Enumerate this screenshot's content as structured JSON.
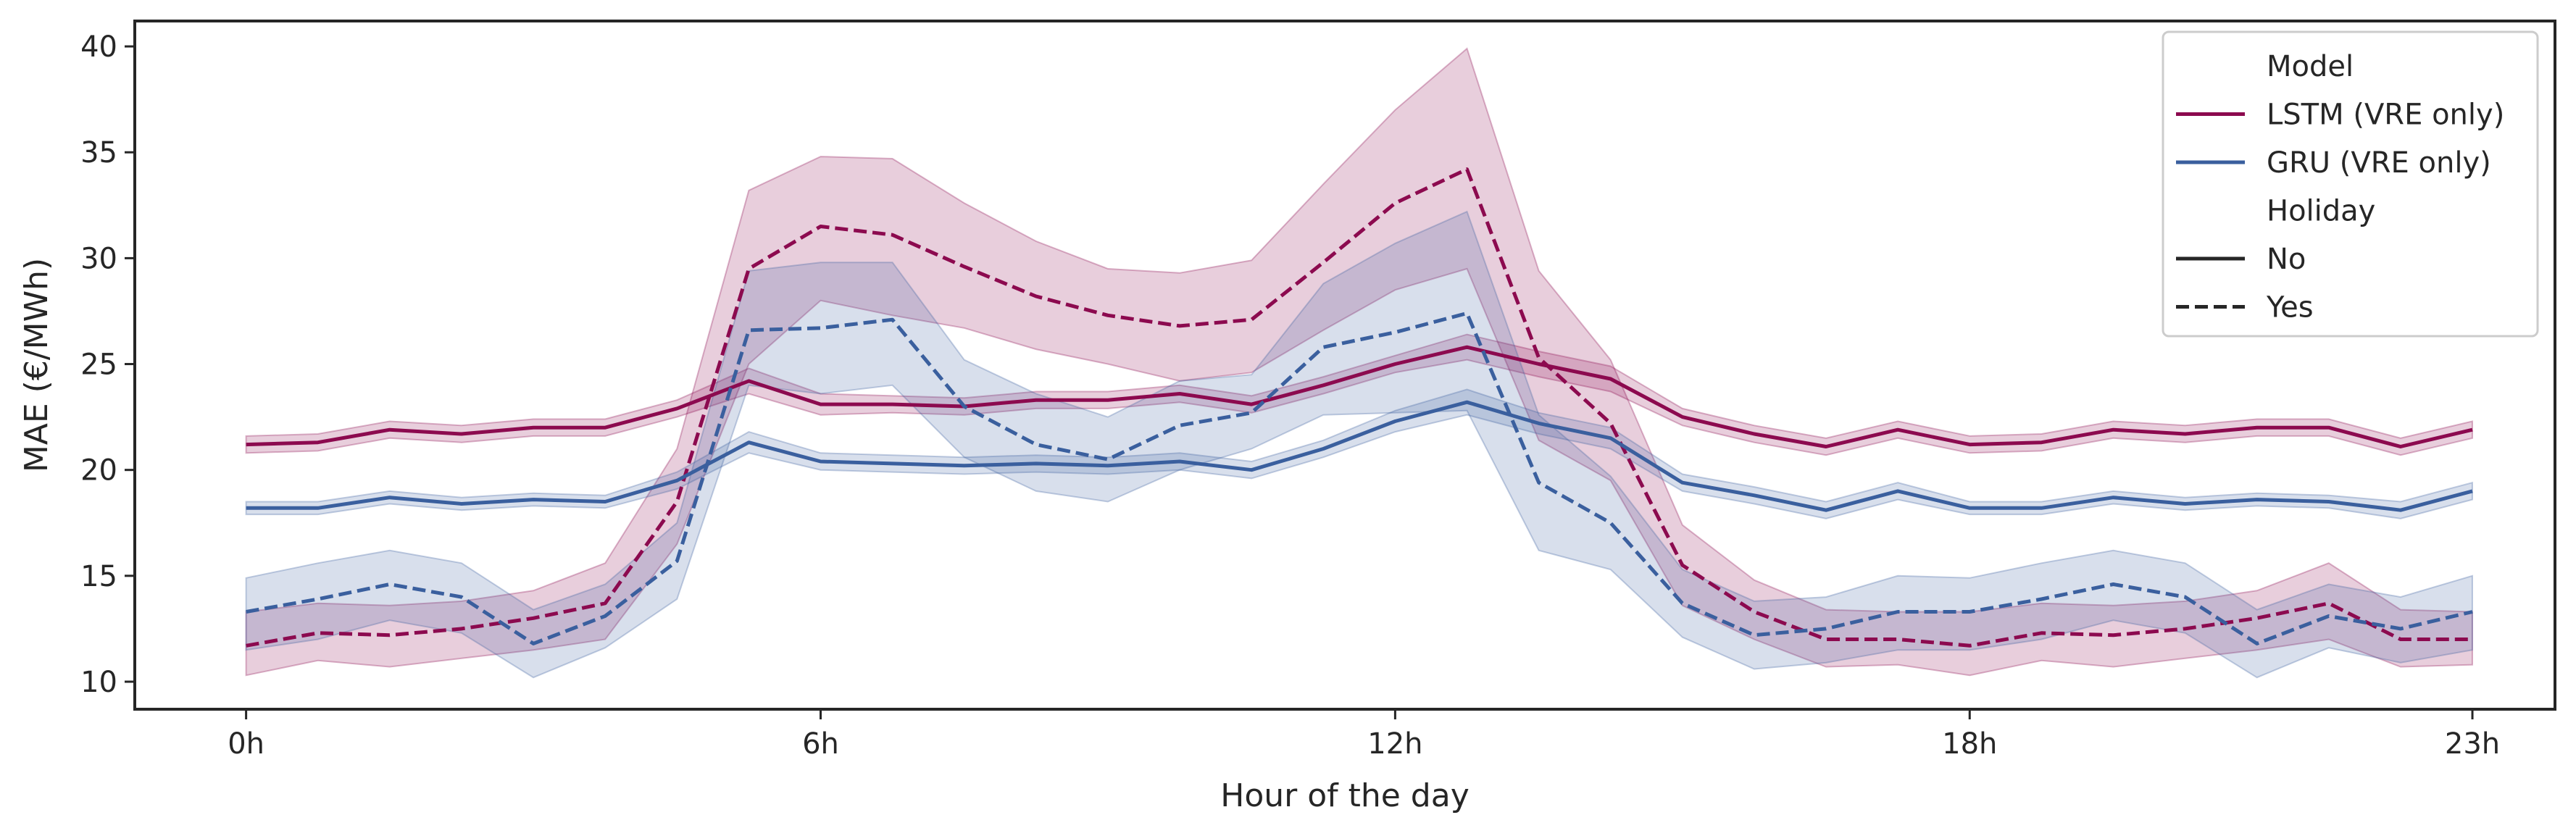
{
  "chart_data": {
    "type": "line",
    "xlabel": "Hour of the day",
    "ylabel": "MAE (€/MWh)",
    "xlim": [
      -1.55,
      32.15
    ],
    "ylim": [
      8.7,
      41.2
    ],
    "x_ticks": [
      {
        "value": 0,
        "label": "0h"
      },
      {
        "value": 6,
        "label": "6h"
      },
      {
        "value": 12,
        "label": "12h"
      },
      {
        "value": 18,
        "label": "18h"
      },
      {
        "value": 23,
        "label": "23h"
      }
    ],
    "y_ticks": [
      10,
      15,
      20,
      25,
      30,
      35,
      40
    ],
    "x_tick_positions": [
      0,
      8,
      16,
      24,
      31
    ],
    "grid": false,
    "legend": {
      "placement": "top-right",
      "groups": [
        {
          "title": "Model",
          "items": [
            {
              "label": "LSTM (VRE only)",
              "color": "#8c0a4f",
              "dash": "solid"
            },
            {
              "label": "GRU (VRE only)",
              "color": "#3a5f9e",
              "dash": "solid"
            }
          ]
        },
        {
          "title": "Holiday",
          "items": [
            {
              "label": "No",
              "color": "#262626",
              "dash": "solid"
            },
            {
              "label": "Yes",
              "color": "#262626",
              "dash": "dashed"
            }
          ]
        }
      ]
    },
    "x": [
      0,
      1,
      2,
      3,
      4,
      5,
      6,
      7,
      8,
      9,
      10,
      11,
      12,
      13,
      14,
      15,
      16,
      17,
      18,
      19,
      20,
      21,
      22,
      23,
      24,
      25,
      26,
      27,
      28,
      29,
      30,
      31
    ],
    "series": [
      {
        "name": "LSTM (VRE only)",
        "holiday": "No",
        "color": "#8c0a4f",
        "dash": "solid",
        "values": [
          21.2,
          21.3,
          21.9,
          21.7,
          22.0,
          22.0,
          22.9,
          24.2,
          23.1,
          23.1,
          23.0,
          23.3,
          23.3,
          23.6,
          23.1,
          24.0,
          25.0,
          25.8,
          25.0,
          24.3,
          22.5,
          21.7,
          21.1,
          21.9,
          21.2,
          21.3,
          21.9,
          21.7,
          22.0,
          22.0,
          21.1,
          21.9
        ],
        "ci_low": [
          20.8,
          20.9,
          21.5,
          21.3,
          21.6,
          21.6,
          22.5,
          23.6,
          22.6,
          22.7,
          22.6,
          22.9,
          22.9,
          23.2,
          22.7,
          23.6,
          24.6,
          25.2,
          24.4,
          23.7,
          22.1,
          21.3,
          20.7,
          21.5,
          20.8,
          20.9,
          21.5,
          21.3,
          21.6,
          21.6,
          20.7,
          21.5
        ],
        "ci_high": [
          21.6,
          21.7,
          22.3,
          22.1,
          22.4,
          22.4,
          23.3,
          24.8,
          23.6,
          23.5,
          23.4,
          23.7,
          23.7,
          24.0,
          23.5,
          24.4,
          25.4,
          26.4,
          25.6,
          24.9,
          22.9,
          22.1,
          21.5,
          22.3,
          21.6,
          21.7,
          22.3,
          22.1,
          22.4,
          22.4,
          21.5,
          22.3
        ]
      },
      {
        "name": "LSTM (VRE only)",
        "holiday": "Yes",
        "color": "#8c0a4f",
        "dash": "dashed",
        "values": [
          11.7,
          12.3,
          12.2,
          12.5,
          13.0,
          13.7,
          18.5,
          29.5,
          31.5,
          31.1,
          29.6,
          28.2,
          27.3,
          26.8,
          27.1,
          29.8,
          32.6,
          34.2,
          25.3,
          22.2,
          15.5,
          13.3,
          12.0,
          12.0,
          11.7,
          12.3,
          12.2,
          12.5,
          13.0,
          13.7,
          12.0,
          12.0
        ],
        "ci_low": [
          10.3,
          11.0,
          10.7,
          11.1,
          11.5,
          12.0,
          16.5,
          25.0,
          28.0,
          27.3,
          26.7,
          25.7,
          25.0,
          24.2,
          24.6,
          26.6,
          28.5,
          29.5,
          21.4,
          19.5,
          13.6,
          12.0,
          10.7,
          10.8,
          10.3,
          11.0,
          10.7,
          11.1,
          11.5,
          12.0,
          10.7,
          10.8
        ],
        "ci_high": [
          13.3,
          13.7,
          13.6,
          13.8,
          14.3,
          15.6,
          21.0,
          33.2,
          34.8,
          34.7,
          32.6,
          30.8,
          29.5,
          29.3,
          29.9,
          33.5,
          37.0,
          39.9,
          29.4,
          25.2,
          17.4,
          14.8,
          13.4,
          13.3,
          13.3,
          13.7,
          13.6,
          13.8,
          14.3,
          15.6,
          13.4,
          13.3
        ]
      },
      {
        "name": "GRU (VRE only)",
        "holiday": "No",
        "color": "#3a5f9e",
        "dash": "solid",
        "values": [
          18.2,
          18.2,
          18.7,
          18.4,
          18.6,
          18.5,
          19.5,
          21.3,
          20.4,
          20.3,
          20.2,
          20.3,
          20.2,
          20.4,
          20.0,
          21.0,
          22.3,
          23.2,
          22.2,
          21.5,
          19.4,
          18.8,
          18.1,
          19.0,
          18.2,
          18.2,
          18.7,
          18.4,
          18.6,
          18.5,
          18.1,
          19.0
        ],
        "ci_low": [
          17.9,
          17.9,
          18.4,
          18.1,
          18.3,
          18.2,
          19.1,
          20.8,
          20.0,
          19.9,
          19.8,
          19.9,
          19.8,
          20.0,
          19.6,
          20.6,
          21.8,
          22.6,
          21.7,
          21.0,
          19.0,
          18.4,
          17.7,
          18.6,
          17.9,
          17.9,
          18.4,
          18.1,
          18.3,
          18.2,
          17.7,
          18.6
        ],
        "ci_high": [
          18.5,
          18.5,
          19.0,
          18.7,
          18.9,
          18.8,
          19.9,
          21.8,
          20.8,
          20.7,
          20.6,
          20.7,
          20.6,
          20.8,
          20.4,
          21.4,
          22.8,
          23.8,
          22.7,
          22.0,
          19.8,
          19.2,
          18.5,
          19.4,
          18.5,
          18.5,
          19.0,
          18.7,
          18.9,
          18.8,
          18.5,
          19.4
        ]
      },
      {
        "name": "GRU (VRE only)",
        "holiday": "Yes",
        "color": "#3a5f9e",
        "dash": "dashed",
        "values": [
          13.3,
          13.9,
          14.6,
          14.0,
          11.8,
          13.1,
          15.7,
          26.6,
          26.7,
          27.1,
          23.0,
          21.2,
          20.5,
          22.1,
          22.7,
          25.8,
          26.5,
          27.4,
          19.4,
          17.5,
          13.7,
          12.2,
          12.5,
          13.3,
          13.3,
          13.9,
          14.6,
          14.0,
          11.8,
          13.1,
          12.5,
          13.3
        ],
        "ci_low": [
          11.5,
          12.0,
          12.9,
          12.3,
          10.2,
          11.6,
          13.9,
          24.0,
          23.6,
          24.0,
          20.6,
          19.0,
          18.5,
          20.0,
          21.0,
          22.6,
          22.7,
          22.8,
          16.2,
          15.3,
          12.1,
          10.6,
          10.9,
          11.5,
          11.5,
          12.0,
          12.9,
          12.3,
          10.2,
          11.6,
          10.9,
          11.5
        ],
        "ci_high": [
          14.9,
          15.6,
          16.2,
          15.6,
          13.4,
          14.6,
          17.5,
          29.4,
          29.8,
          29.8,
          25.2,
          23.6,
          22.5,
          24.2,
          24.5,
          28.8,
          30.7,
          32.2,
          22.6,
          19.7,
          15.3,
          13.8,
          14.0,
          15.0,
          14.9,
          15.6,
          16.2,
          15.6,
          13.4,
          14.6,
          14.0,
          15.0
        ]
      }
    ]
  }
}
